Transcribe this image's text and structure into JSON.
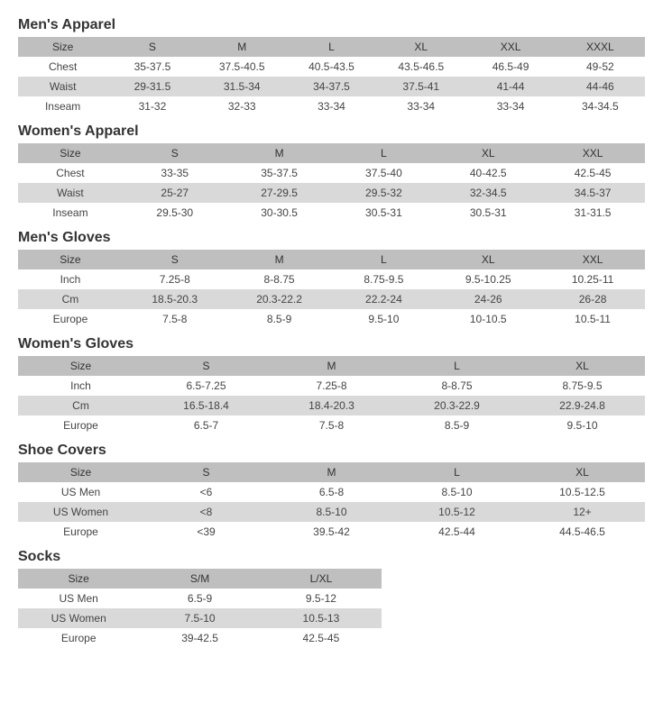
{
  "sections": [
    {
      "title": "Men's Apparel",
      "colClass": "w6",
      "tableWidth": "100%",
      "header": [
        "Size",
        "S",
        "M",
        "L",
        "XL",
        "XXL",
        "XXXL"
      ],
      "rows": [
        {
          "label": "Chest",
          "cells": [
            "35-37.5",
            "37.5-40.5",
            "40.5-43.5",
            "43.5-46.5",
            "46.5-49",
            "49-52"
          ]
        },
        {
          "label": "Waist",
          "cells": [
            "29-31.5",
            "31.5-34",
            "34-37.5",
            "37.5-41",
            "41-44",
            "44-46"
          ]
        },
        {
          "label": "Inseam",
          "cells": [
            "31-32",
            "32-33",
            "33-34",
            "33-34",
            "33-34",
            "34-34.5"
          ]
        }
      ]
    },
    {
      "title": "Women's Apparel",
      "colClass": "w5",
      "tableWidth": "100%",
      "header": [
        "Size",
        "S",
        "M",
        "L",
        "XL",
        "XXL"
      ],
      "rows": [
        {
          "label": "Chest",
          "cells": [
            "33-35",
            "35-37.5",
            "37.5-40",
            "40-42.5",
            "42.5-45"
          ]
        },
        {
          "label": "Waist",
          "cells": [
            "25-27",
            "27-29.5",
            "29.5-32",
            "32-34.5",
            "34.5-37"
          ]
        },
        {
          "label": "Inseam",
          "cells": [
            "29.5-30",
            "30-30.5",
            "30.5-31",
            "30.5-31",
            "31-31.5"
          ]
        }
      ]
    },
    {
      "title": "Men's Gloves",
      "colClass": "w5",
      "tableWidth": "100%",
      "header": [
        "Size",
        "S",
        "M",
        "L",
        "XL",
        "XXL"
      ],
      "rows": [
        {
          "label": "Inch",
          "cells": [
            "7.25-8",
            "8-8.75",
            "8.75-9.5",
            "9.5-10.25",
            "10.25-11"
          ]
        },
        {
          "label": "Cm",
          "cells": [
            "18.5-20.3",
            "20.3-22.2",
            "22.2-24",
            "24-26",
            "26-28"
          ]
        },
        {
          "label": "Europe",
          "cells": [
            "7.5-8",
            "8.5-9",
            "9.5-10",
            "10-10.5",
            "10.5-11"
          ]
        }
      ]
    },
    {
      "title": "Women's Gloves",
      "colClass": "w4",
      "tableWidth": "100%",
      "header": [
        "Size",
        "S",
        "M",
        "L",
        "XL"
      ],
      "rows": [
        {
          "label": "Inch",
          "cells": [
            "6.5-7.25",
            "7.25-8",
            "8-8.75",
            "8.75-9.5"
          ]
        },
        {
          "label": "Cm",
          "cells": [
            "16.5-18.4",
            "18.4-20.3",
            "20.3-22.9",
            "22.9-24.8"
          ]
        },
        {
          "label": "Europe",
          "cells": [
            "6.5-7",
            "7.5-8",
            "8.5-9",
            "9.5-10"
          ]
        }
      ]
    },
    {
      "title": "Shoe Covers",
      "colClass": "w4",
      "tableWidth": "100%",
      "header": [
        "Size",
        "S",
        "M",
        "L",
        "XL"
      ],
      "rows": [
        {
          "label": "US Men",
          "cells": [
            "<6",
            "6.5-8",
            "8.5-10",
            "10.5-12.5"
          ]
        },
        {
          "label": "US Women",
          "cells": [
            "<8",
            "8.5-10",
            "10.5-12",
            "12+"
          ]
        },
        {
          "label": "Europe",
          "cells": [
            "<39",
            "39.5-42",
            "42.5-44",
            "44.5-46.5"
          ]
        }
      ]
    },
    {
      "title": "Socks",
      "colClass": "w2",
      "tableWidth": "58%",
      "header": [
        "Size",
        "S/M",
        "L/XL"
      ],
      "rows": [
        {
          "label": "US Men",
          "cells": [
            "6.5-9",
            "9.5-12"
          ]
        },
        {
          "label": "US Women",
          "cells": [
            "7.5-10",
            "10.5-13"
          ]
        },
        {
          "label": "Europe",
          "cells": [
            "39-42.5",
            "42.5-45"
          ]
        }
      ]
    }
  ]
}
